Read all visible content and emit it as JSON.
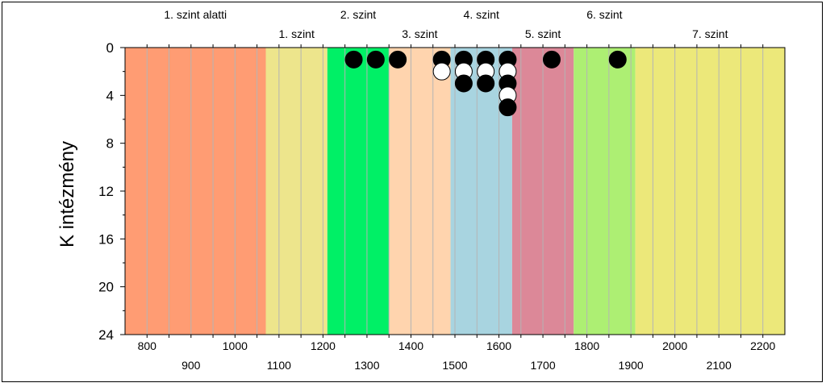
{
  "chart_data": {
    "type": "scatter",
    "ylabel": "K intézmény",
    "ylim": [
      24,
      0
    ],
    "xlim": [
      750,
      2250
    ],
    "yticks": [
      0,
      4,
      8,
      12,
      16,
      20,
      24
    ],
    "xticks_top_row": [
      800,
      1000,
      1200,
      1400,
      1600,
      1800,
      2000,
      2200
    ],
    "xticks_bottom_row": [
      900,
      1100,
      1300,
      1500,
      1700,
      1900,
      2100
    ],
    "bands": [
      {
        "label": "1. szint alatti",
        "from": 750,
        "to": 1070,
        "color": "#ff9c73",
        "label_row": "upper"
      },
      {
        "label": "1. szint",
        "from": 1070,
        "to": 1210,
        "color": "#ede58c",
        "label_row": "lower"
      },
      {
        "label": "2. szint",
        "from": 1210,
        "to": 1350,
        "color": "#00f066",
        "label_row": "upper"
      },
      {
        "label": "3. szint",
        "from": 1350,
        "to": 1490,
        "color": "#ffd4ae",
        "label_row": "lower"
      },
      {
        "label": "4. szint",
        "from": 1490,
        "to": 1630,
        "color": "#a8d4e0",
        "label_row": "upper"
      },
      {
        "label": "5. szint",
        "from": 1630,
        "to": 1770,
        "color": "#dc8898",
        "label_row": "lower"
      },
      {
        "label": "6. szint",
        "from": 1770,
        "to": 1910,
        "color": "#adef73",
        "label_row": "upper"
      },
      {
        "label": "7. szint",
        "from": 1910,
        "to": 2250,
        "color": "#ece87a",
        "label_row": "lower"
      }
    ],
    "points": [
      {
        "x": 1270,
        "y": 1,
        "fill": "black"
      },
      {
        "x": 1320,
        "y": 1,
        "fill": "black"
      },
      {
        "x": 1370,
        "y": 1,
        "fill": "black"
      },
      {
        "x": 1470,
        "y": 1,
        "fill": "black"
      },
      {
        "x": 1470,
        "y": 2,
        "fill": "white"
      },
      {
        "x": 1520,
        "y": 1,
        "fill": "black"
      },
      {
        "x": 1520,
        "y": 2,
        "fill": "white"
      },
      {
        "x": 1520,
        "y": 3,
        "fill": "black"
      },
      {
        "x": 1570,
        "y": 1,
        "fill": "black"
      },
      {
        "x": 1570,
        "y": 2,
        "fill": "white"
      },
      {
        "x": 1570,
        "y": 3,
        "fill": "black"
      },
      {
        "x": 1620,
        "y": 1,
        "fill": "black"
      },
      {
        "x": 1620,
        "y": 2,
        "fill": "white"
      },
      {
        "x": 1620,
        "y": 3,
        "fill": "black"
      },
      {
        "x": 1620,
        "y": 4,
        "fill": "white"
      },
      {
        "x": 1620,
        "y": 5,
        "fill": "black"
      },
      {
        "x": 1720,
        "y": 1,
        "fill": "black"
      },
      {
        "x": 1870,
        "y": 1,
        "fill": "black"
      }
    ],
    "grid": true
  }
}
